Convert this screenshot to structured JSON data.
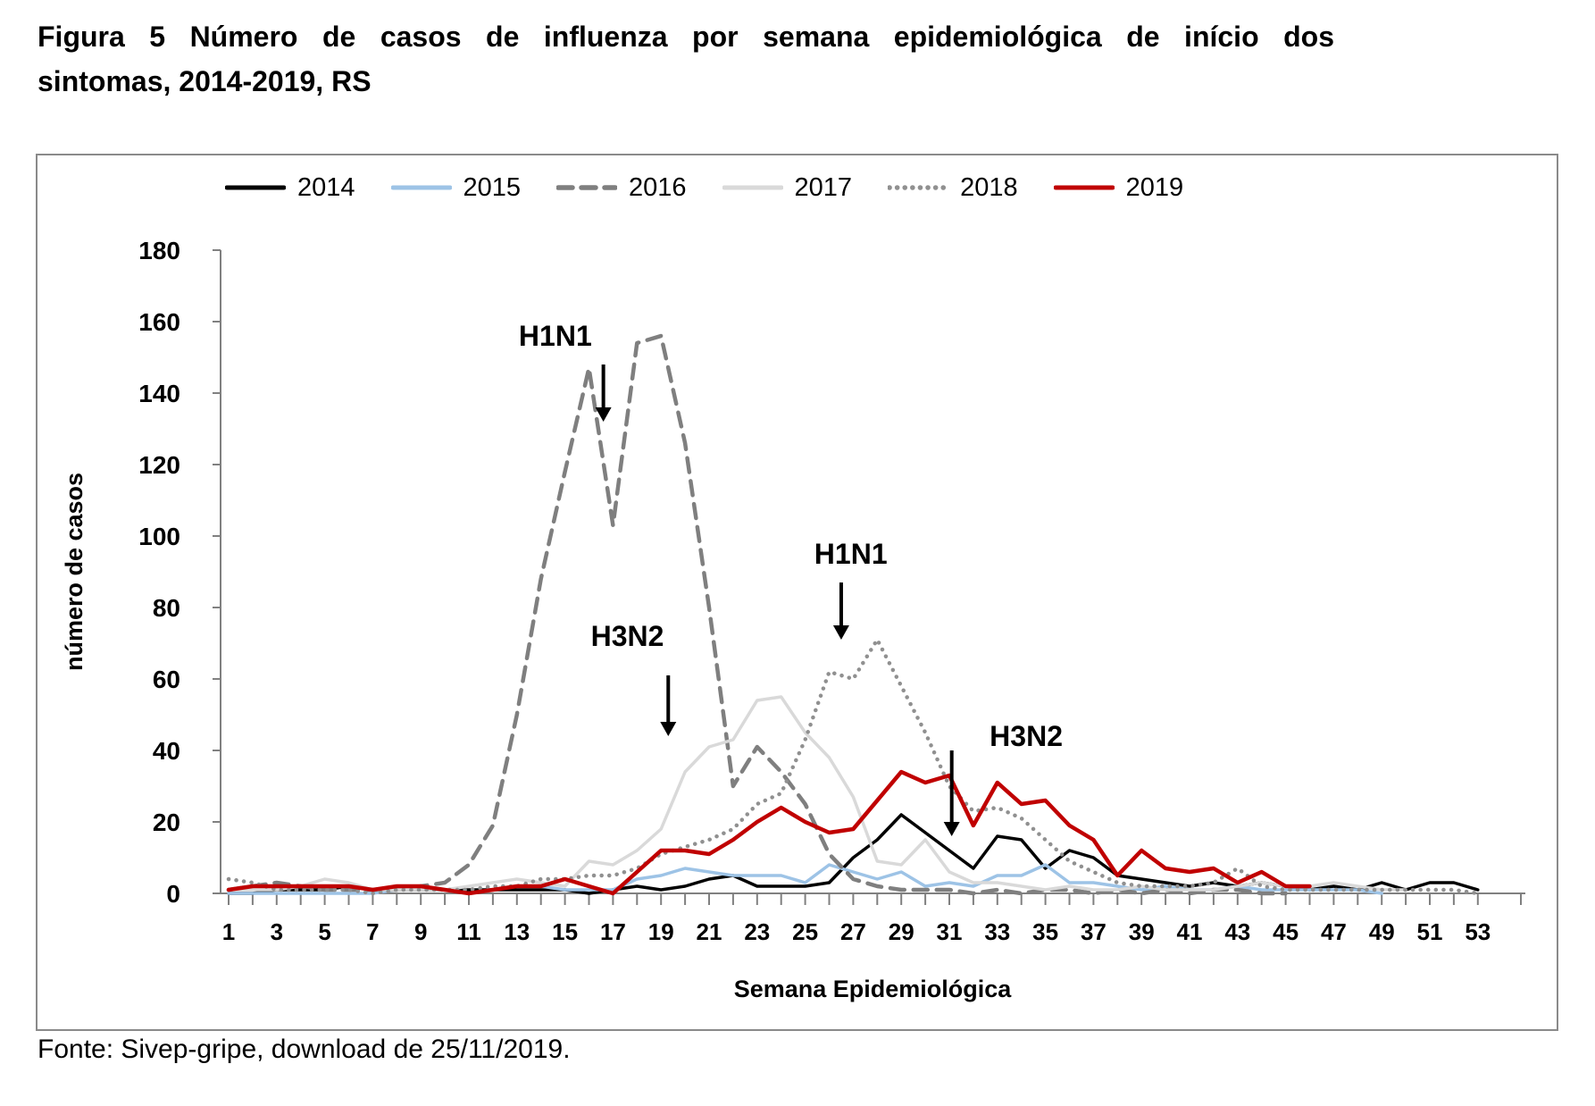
{
  "title": {
    "line1": "Figura 5 Número de casos de influenza por semana epidemiológica de início dos",
    "line2": "sintomas, 2014-2019, RS",
    "full": "Figura 5 Número de casos de influenza por semana epidemiológica de início dos sintomas, 2014-2019, RS"
  },
  "source_note": "Fonte: Sivep-gripe, download de 25/11/2019.",
  "chart_data": {
    "type": "line",
    "title": "Número de casos de influenza por semana epidemiológica de início dos sintomas, 2014-2019, RS",
    "xlabel": "Semana Epidemiológica",
    "ylabel": "número de casos",
    "legend_position": "top",
    "grid": "off",
    "x_range_weeks": [
      1,
      53
    ],
    "x_tick_labels": [
      1,
      3,
      5,
      7,
      9,
      11,
      13,
      15,
      17,
      19,
      21,
      23,
      25,
      27,
      29,
      31,
      33,
      35,
      37,
      39,
      41,
      43,
      45,
      47,
      49,
      51,
      53
    ],
    "ylim": [
      0,
      180
    ],
    "y_tick_step": 20,
    "axis_color": "#808080",
    "series": [
      {
        "name": "2014",
        "color": "#000000",
        "line_style": "solid",
        "stroke_width": 3.5,
        "values": [
          0,
          0,
          1,
          1,
          1,
          2,
          1,
          1,
          1,
          1,
          1,
          1,
          1,
          1,
          1,
          0,
          1,
          2,
          1,
          2,
          4,
          5,
          2,
          2,
          2,
          3,
          10,
          15,
          22,
          17,
          12,
          7,
          16,
          15,
          7,
          12,
          10,
          5,
          4,
          3,
          2,
          3,
          2,
          3,
          2,
          1,
          2,
          1,
          3,
          1,
          3,
          3,
          1
        ]
      },
      {
        "name": "2015",
        "color": "#9DC3E6",
        "line_style": "solid",
        "stroke_width": 3.5,
        "values": [
          0,
          0,
          0,
          0,
          0,
          0,
          0,
          1,
          2,
          1,
          0,
          1,
          2,
          2,
          1,
          1,
          1,
          4,
          5,
          7,
          6,
          5,
          5,
          5,
          3,
          8,
          6,
          4,
          6,
          2,
          3,
          2,
          5,
          5,
          8,
          3,
          3,
          2,
          1,
          2,
          1,
          1,
          2,
          1,
          1,
          1,
          1,
          1,
          0
        ]
      },
      {
        "name": "2016",
        "color": "#7F7F7F",
        "line_style": "dashed",
        "stroke_width": 4.5,
        "values": [
          1,
          2,
          3,
          2,
          1,
          1,
          1,
          1,
          2,
          3,
          8,
          19,
          50,
          88,
          118,
          147,
          103,
          154,
          156,
          126,
          80,
          30,
          41,
          34,
          25,
          11,
          4,
          2,
          1,
          1,
          1,
          0,
          1,
          0,
          1,
          1,
          0,
          1,
          0,
          1,
          0,
          1,
          1,
          0,
          0
        ]
      },
      {
        "name": "2017",
        "color": "#D9D9D9",
        "line_style": "solid",
        "stroke_width": 3.5,
        "values": [
          1,
          1,
          1,
          2,
          4,
          3,
          1,
          1,
          1,
          1,
          2,
          3,
          4,
          3,
          2,
          9,
          8,
          12,
          18,
          34,
          41,
          43,
          54,
          55,
          45,
          38,
          27,
          9,
          8,
          15,
          6,
          3,
          3,
          2,
          1,
          2,
          1,
          1,
          2,
          1,
          1,
          1,
          2,
          3,
          2,
          2,
          3,
          2,
          1,
          1
        ]
      },
      {
        "name": "2018",
        "color": "#909090",
        "line_style": "dotted",
        "stroke_width": 4.5,
        "values": [
          4,
          3,
          1,
          1,
          1,
          1,
          0,
          1,
          1,
          1,
          1,
          2,
          2,
          4,
          4,
          5,
          5,
          7,
          11,
          13,
          15,
          18,
          25,
          28,
          43,
          62,
          60,
          71,
          58,
          45,
          30,
          23,
          24,
          21,
          15,
          9,
          6,
          3,
          2,
          2,
          2,
          3,
          7,
          2,
          1,
          1,
          1,
          1,
          1,
          1,
          1,
          1,
          0
        ]
      },
      {
        "name": "2019",
        "color": "#C00000",
        "line_style": "solid",
        "stroke_width": 4.5,
        "values": [
          1,
          2,
          2,
          2,
          2,
          2,
          1,
          2,
          2,
          1,
          0,
          1,
          2,
          2,
          4,
          2,
          0,
          6,
          12,
          12,
          11,
          15,
          20,
          24,
          20,
          17,
          18,
          26,
          34,
          31,
          33,
          19,
          31,
          25,
          26,
          19,
          15,
          5,
          12,
          7,
          6,
          7,
          3,
          6,
          2,
          2
        ]
      }
    ],
    "annotations": [
      {
        "text": "H1N1",
        "label_week": 14.6,
        "label_value": 156,
        "arrow_week": 16.6,
        "arrow_from": 148,
        "arrow_to": 132
      },
      {
        "text": "H3N2",
        "label_week": 17.6,
        "label_value": 72,
        "arrow_week": 19.3,
        "arrow_from": 61,
        "arrow_to": 44
      },
      {
        "text": "H1N1",
        "label_week": 26.9,
        "label_value": 95,
        "arrow_week": 26.5,
        "arrow_from": 87,
        "arrow_to": 71
      },
      {
        "text": "H3N2",
        "label_week": 34.2,
        "label_value": 44,
        "arrow_week": 31.1,
        "arrow_from": 40,
        "arrow_to": 16
      }
    ]
  }
}
